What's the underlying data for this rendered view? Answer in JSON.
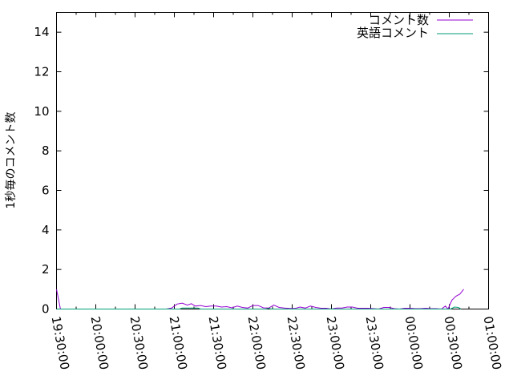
{
  "chart_data": {
    "type": "line",
    "title": "",
    "xlabel": "",
    "ylabel": "1秒毎のコメント数",
    "xlim": [
      "19:30:00",
      "01:00:00"
    ],
    "ylim": [
      0,
      15
    ],
    "grid": false,
    "legend_position": "top-right",
    "x_ticks": [
      "19:30:00",
      "20:00:00",
      "20:30:00",
      "21:00:00",
      "21:30:00",
      "22:00:00",
      "22:30:00",
      "23:00:00",
      "23:30:00",
      "00:00:00",
      "00:30:00",
      "01:00:00"
    ],
    "y_ticks": [
      "0",
      "2",
      "4",
      "6",
      "8",
      "10",
      "12",
      "14"
    ],
    "series": [
      {
        "name": "コメント数",
        "color": "#9400d3",
        "points": [
          [
            "19:30:00",
            1.0
          ],
          [
            "19:33:00",
            0
          ],
          [
            "20:54:00",
            0
          ],
          [
            "20:58:00",
            0.05
          ],
          [
            "21:02:00",
            0.25
          ],
          [
            "21:06:00",
            0.3
          ],
          [
            "21:10:00",
            0.2
          ],
          [
            "21:13:00",
            0.27
          ],
          [
            "21:16:00",
            0.15
          ],
          [
            "21:20:00",
            0.18
          ],
          [
            "21:24:00",
            0.12
          ],
          [
            "21:28:00",
            0.15
          ],
          [
            "21:32:00",
            0.15
          ],
          [
            "21:36:00",
            0.1
          ],
          [
            "21:40:00",
            0.12
          ],
          [
            "21:44:00",
            0.06
          ],
          [
            "21:48:00",
            0.15
          ],
          [
            "21:52:00",
            0.08
          ],
          [
            "21:56:00",
            0.05
          ],
          [
            "22:00:00",
            0.18
          ],
          [
            "22:04:00",
            0.18
          ],
          [
            "22:08:00",
            0.06
          ],
          [
            "22:12:00",
            0.05
          ],
          [
            "22:16:00",
            0.2
          ],
          [
            "22:20:00",
            0.08
          ],
          [
            "22:24:00",
            0.05
          ],
          [
            "22:28:00",
            0.03
          ],
          [
            "22:32:00",
            0.03
          ],
          [
            "22:36:00",
            0.1
          ],
          [
            "22:40:00",
            0.05
          ],
          [
            "22:44:00",
            0.15
          ],
          [
            "22:48:00",
            0.08
          ],
          [
            "22:52:00",
            0.04
          ],
          [
            "22:56:00",
            0.04
          ],
          [
            "23:00:00",
            0
          ],
          [
            "23:04:00",
            0.05
          ],
          [
            "23:08:00",
            0.05
          ],
          [
            "23:12:00",
            0.1
          ],
          [
            "23:16:00",
            0.1
          ],
          [
            "23:20:00",
            0.04
          ],
          [
            "23:24:00",
            0.04
          ],
          [
            "23:28:00",
            0.04
          ],
          [
            "23:32:00",
            0.02
          ],
          [
            "23:36:00",
            0
          ],
          [
            "23:40:00",
            0.08
          ],
          [
            "23:44:00",
            0.08
          ],
          [
            "23:48:00",
            0.02
          ],
          [
            "23:52:00",
            0
          ],
          [
            "23:56:00",
            0.04
          ],
          [
            "00:00:00",
            0.04
          ],
          [
            "00:04:00",
            0.02
          ],
          [
            "00:08:00",
            0.02
          ],
          [
            "00:12:00",
            0.04
          ],
          [
            "00:16:00",
            0.02
          ],
          [
            "00:20:00",
            0.02
          ],
          [
            "00:24:00",
            0
          ],
          [
            "00:27:00",
            0.15
          ],
          [
            "00:29:00",
            0
          ],
          [
            "00:32:00",
            0.45
          ],
          [
            "00:35:00",
            0.65
          ],
          [
            "00:38:00",
            0.75
          ],
          [
            "00:41:00",
            1.0
          ]
        ]
      },
      {
        "name": "英語コメント",
        "color": "#009e73",
        "points": [
          [
            "19:30:00",
            0
          ],
          [
            "21:04:00",
            0
          ],
          [
            "21:06:00",
            0.05
          ],
          [
            "21:18:00",
            0.05
          ],
          [
            "21:20:00",
            0
          ],
          [
            "22:10:00",
            0
          ],
          [
            "22:12:00",
            0.04
          ],
          [
            "22:14:00",
            0
          ],
          [
            "00:31:00",
            0
          ],
          [
            "00:34:00",
            0.1
          ],
          [
            "00:37:00",
            0.08
          ],
          [
            "00:39:00",
            0
          ]
        ]
      }
    ]
  }
}
